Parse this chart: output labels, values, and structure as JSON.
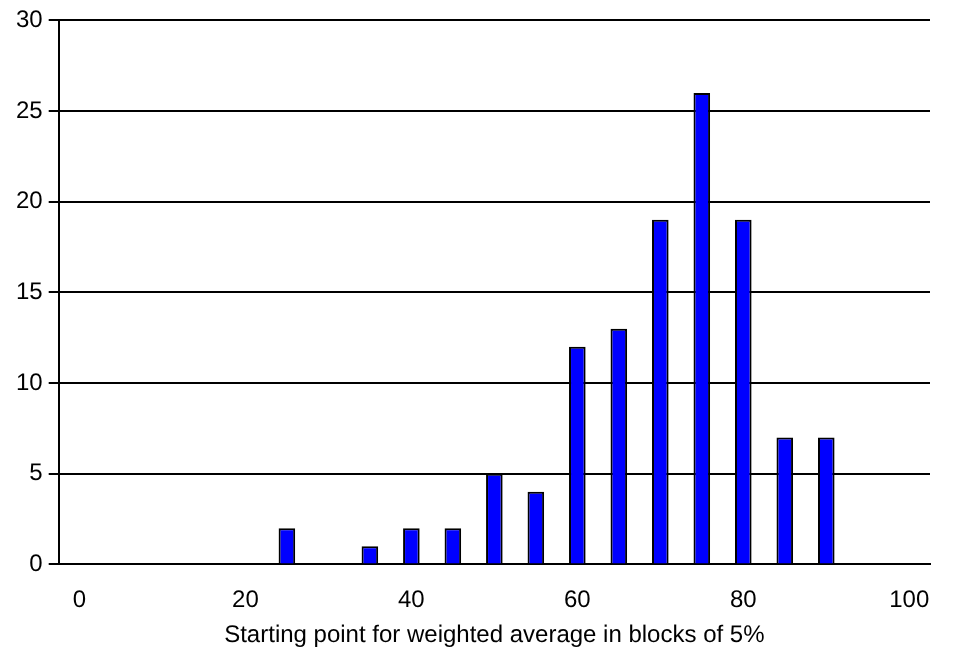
{
  "chart_data": {
    "type": "bar",
    "xlabel": "Starting point for weighted average in blocks of 5%",
    "categories": [
      "0",
      null,
      null,
      null,
      "20",
      null,
      null,
      null,
      "40",
      null,
      null,
      null,
      "60",
      null,
      null,
      null,
      "80",
      null,
      null,
      null,
      "100"
    ],
    "values": [
      0,
      0,
      0,
      0,
      0,
      2,
      0,
      1,
      2,
      2,
      5,
      4,
      12,
      13,
      19,
      26,
      19,
      7,
      7,
      0,
      0
    ],
    "color": "#0000ff",
    "ylim": [
      0,
      30
    ],
    "yticks": [
      0,
      5,
      10,
      15,
      20,
      25,
      30
    ],
    "grid": "y",
    "legend": false
  }
}
